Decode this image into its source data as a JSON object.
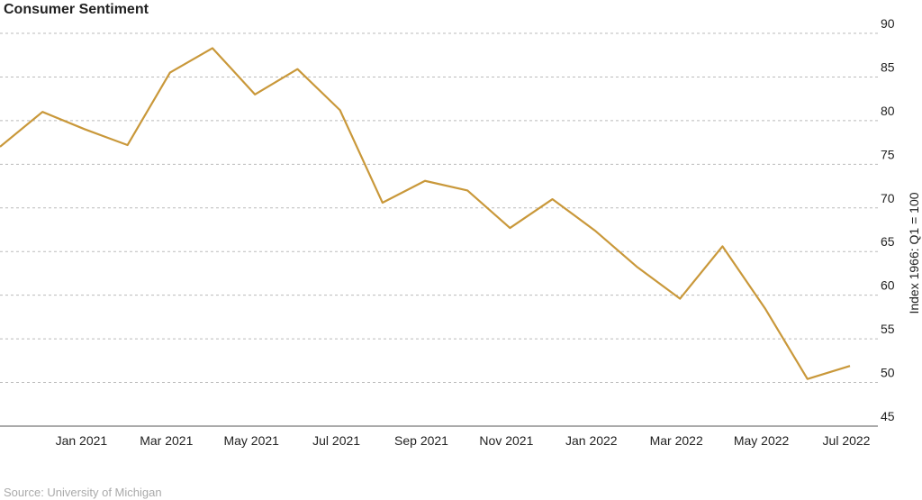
{
  "chart_data": {
    "type": "line",
    "title": "Consumer Sentiment",
    "y_axis_label": "Index 1966: Q1 = 100",
    "source": "Source: University of Michigan",
    "categories": [
      null,
      null,
      "Jan 2021",
      null,
      "Mar 2021",
      null,
      "May 2021",
      null,
      "Jul 2021",
      null,
      "Sep 2021",
      null,
      "Nov 2021",
      null,
      "Jan 2022",
      null,
      "Mar 2022",
      null,
      "May 2022",
      null,
      "Jul 2022"
    ],
    "series": [
      {
        "name": "Consumer Sentiment",
        "color": "#c9983a",
        "values": [
          77,
          81,
          79,
          77.2,
          85.5,
          88.3,
          83,
          85.9,
          81.2,
          70.6,
          73.1,
          72,
          67.7,
          71,
          67.4,
          63.2,
          59.6,
          65.6,
          58.5,
          50.4,
          51.9
        ]
      }
    ],
    "ylim": [
      45,
      90
    ],
    "yticks": [
      45,
      50,
      55,
      60,
      65,
      70,
      75,
      80,
      85,
      90
    ],
    "grid": true
  }
}
